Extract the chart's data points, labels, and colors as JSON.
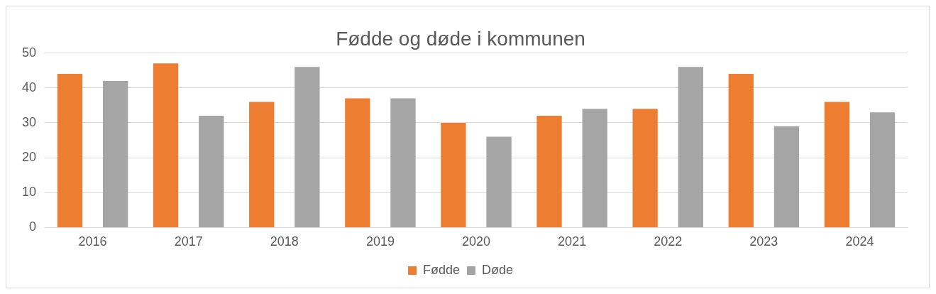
{
  "chart_data": {
    "type": "bar",
    "title": "Fødde og døde i kommunen",
    "categories": [
      "2016",
      "2017",
      "2018",
      "2019",
      "2020",
      "2021",
      "2022",
      "2023",
      "2024"
    ],
    "series": [
      {
        "name": "Fødde",
        "color": "#ed7d31",
        "values": [
          44,
          47,
          36,
          37,
          30,
          32,
          34,
          44,
          36
        ]
      },
      {
        "name": "Døde",
        "color": "#a5a5a5",
        "values": [
          42,
          32,
          46,
          37,
          26,
          34,
          46,
          29,
          33
        ]
      }
    ],
    "ylim": [
      0,
      50
    ],
    "yticks": [
      0,
      10,
      20,
      30,
      40,
      50
    ],
    "grid": "y",
    "legend": "bottom"
  }
}
